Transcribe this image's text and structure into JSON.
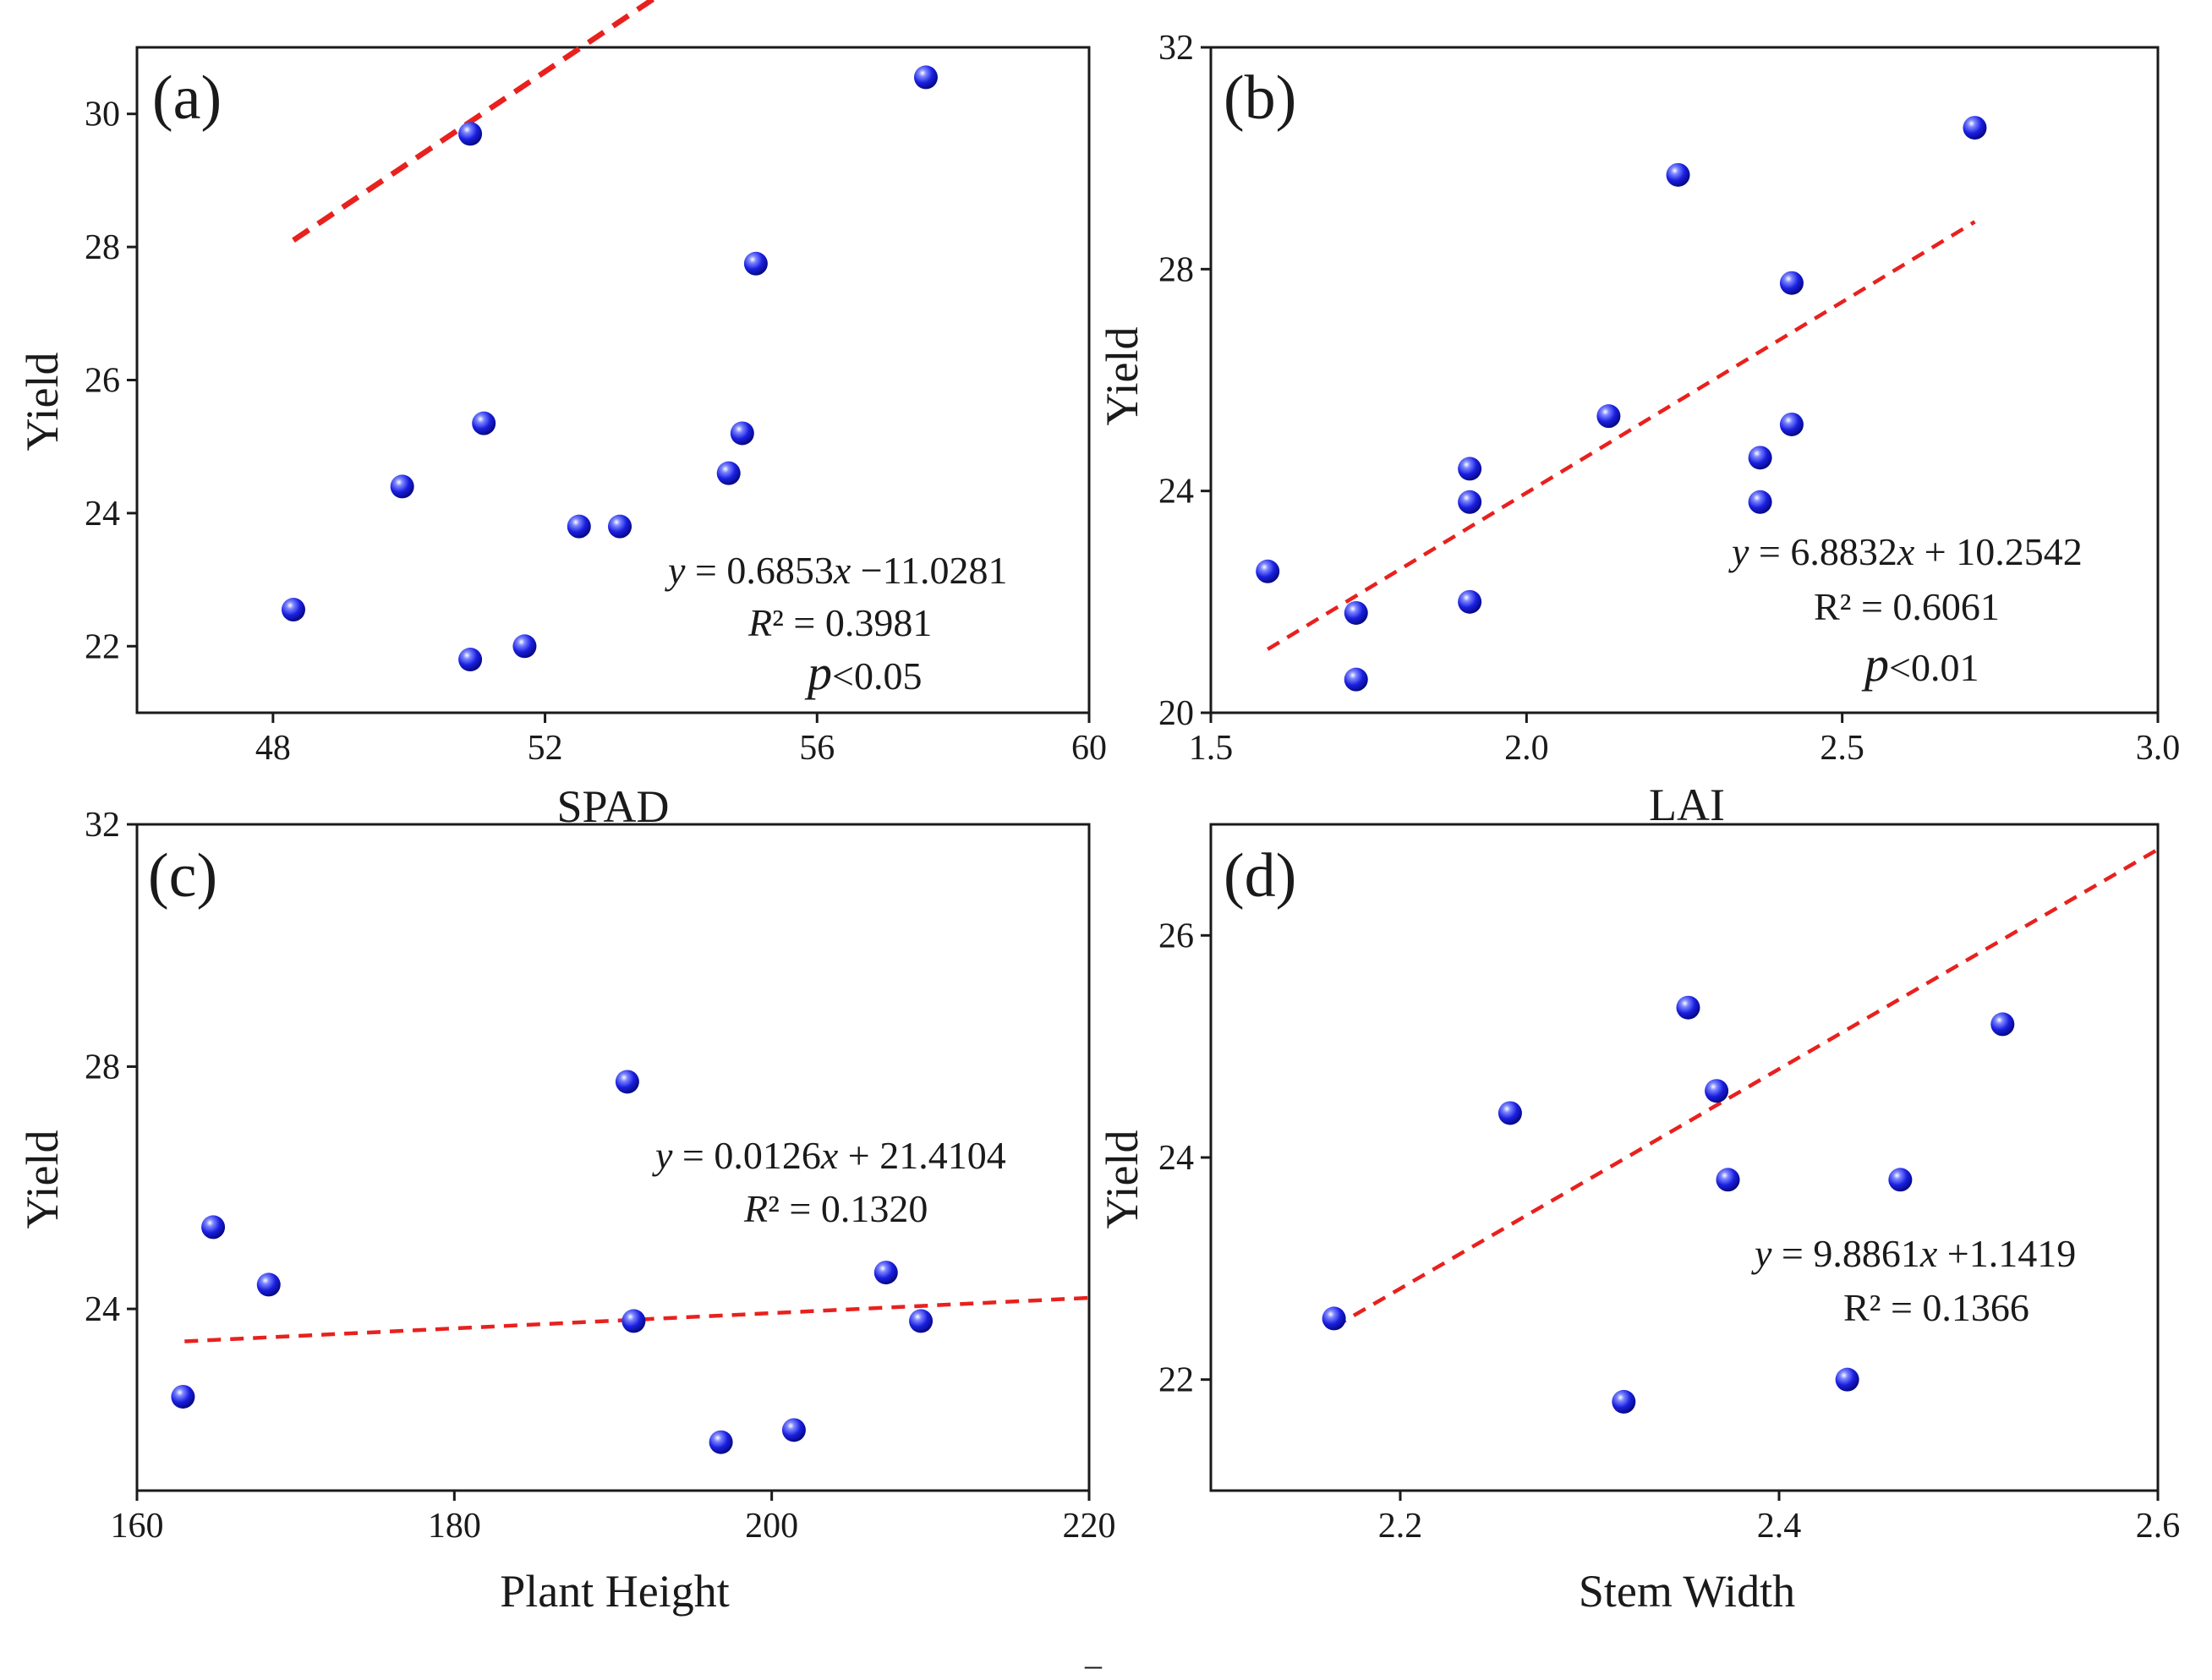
{
  "figure": {
    "footer_mark": "–"
  },
  "chart_data": [
    {
      "type": "scatter",
      "panel": "(a)",
      "xlabel": "SPAD",
      "ylabel": "Yield",
      "xlim": [
        46,
        60
      ],
      "ylim": [
        21,
        31
      ],
      "xticks": [
        48,
        52,
        56,
        60
      ],
      "yticks": [
        22,
        24,
        26,
        28,
        30
      ],
      "points": [
        {
          "x": 48.3,
          "y": 22.55
        },
        {
          "x": 49.9,
          "y": 24.4
        },
        {
          "x": 50.9,
          "y": 29.7
        },
        {
          "x": 50.9,
          "y": 21.8
        },
        {
          "x": 51.1,
          "y": 25.35
        },
        {
          "x": 51.7,
          "y": 22.0
        },
        {
          "x": 52.5,
          "y": 23.8
        },
        {
          "x": 53.1,
          "y": 23.8
        },
        {
          "x": 54.7,
          "y": 24.6
        },
        {
          "x": 54.9,
          "y": 25.2
        },
        {
          "x": 55.1,
          "y": 27.75
        },
        {
          "x": 57.6,
          "y": 30.55
        }
      ],
      "fit": {
        "slope": 0.6853,
        "intercept": -11.0281,
        "x_range": [
          48.3,
          57.6
        ],
        "display_intercept": -5.0
      },
      "annotations": {
        "equation_y": "y",
        "equation_rest": " = 0.6853",
        "equation_x": "x",
        "equation_const": " −11.0281",
        "r2_symbol": "R",
        "r2_rest": "² = 0.3981",
        "p_symbol": "p",
        "p_rest": "<0.05"
      }
    },
    {
      "type": "scatter",
      "panel": "(b)",
      "xlabel": "LAI",
      "ylabel": "Yield",
      "xlim": [
        1.5,
        3.0
      ],
      "ylim": [
        20,
        32
      ],
      "xticks": [
        1.5,
        2.0,
        2.5,
        3.0
      ],
      "xtick_labels": [
        "1.5",
        "2.0",
        "2.5",
        "3.0"
      ],
      "yticks": [
        20,
        24,
        28,
        32
      ],
      "points": [
        {
          "x": 1.59,
          "y": 22.55
        },
        {
          "x": 1.73,
          "y": 21.8
        },
        {
          "x": 1.73,
          "y": 20.6
        },
        {
          "x": 1.91,
          "y": 24.4
        },
        {
          "x": 1.91,
          "y": 23.8
        },
        {
          "x": 1.91,
          "y": 22.0
        },
        {
          "x": 2.13,
          "y": 25.35
        },
        {
          "x": 2.24,
          "y": 29.7
        },
        {
          "x": 2.37,
          "y": 24.6
        },
        {
          "x": 2.37,
          "y": 23.8
        },
        {
          "x": 2.42,
          "y": 27.75
        },
        {
          "x": 2.42,
          "y": 25.2
        },
        {
          "x": 2.71,
          "y": 30.55
        }
      ],
      "fit": {
        "slope": 6.8832,
        "intercept": 10.2542,
        "x_range": [
          1.59,
          2.71
        ],
        "display_intercept": 10.2
      },
      "annotations": {
        "equation_y": "y",
        "equation_rest": " = 6.8832",
        "equation_x": "x",
        "equation_const": " + 10.2542",
        "r2_text": "R² = 0.6061",
        "p_symbol": "p",
        "p_rest": "<0.01"
      }
    },
    {
      "type": "scatter",
      "panel": "(c)",
      "xlabel": "Plant Height",
      "ylabel": "Yield",
      "xlim": [
        160,
        220
      ],
      "ylim": [
        21,
        32
      ],
      "xticks": [
        160,
        180,
        200,
        220
      ],
      "yticks": [
        24,
        28,
        32
      ],
      "points": [
        {
          "x": 162.9,
          "y": 22.55
        },
        {
          "x": 164.8,
          "y": 25.35
        },
        {
          "x": 168.3,
          "y": 24.4
        },
        {
          "x": 190.9,
          "y": 27.75
        },
        {
          "x": 191.3,
          "y": 23.8
        },
        {
          "x": 196.8,
          "y": 21.8
        },
        {
          "x": 201.4,
          "y": 22.0
        },
        {
          "x": 207.2,
          "y": 24.6
        },
        {
          "x": 209.4,
          "y": 23.8
        }
      ],
      "fit": {
        "slope": 0.0126,
        "intercept": 21.4104,
        "x_range": [
          163,
          220
        ]
      },
      "annotations": {
        "equation_y": "y",
        "equation_rest": " = 0.0126",
        "equation_x": "x",
        "equation_const": " + 21.4104",
        "r2_symbol": "R",
        "r2_rest": "² = 0.1320"
      }
    },
    {
      "type": "scatter",
      "panel": "(d)",
      "xlabel": "Stem Width",
      "ylabel": "Yield",
      "xlim": [
        2.1,
        2.6
      ],
      "ylim": [
        21,
        27
      ],
      "xticks": [
        2.2,
        2.4,
        2.6
      ],
      "xtick_labels": [
        "2.2",
        "2.4",
        "2.6"
      ],
      "yticks": [
        22,
        24,
        26
      ],
      "points": [
        {
          "x": 2.165,
          "y": 22.55
        },
        {
          "x": 2.258,
          "y": 24.4
        },
        {
          "x": 2.318,
          "y": 21.8
        },
        {
          "x": 2.352,
          "y": 25.35
        },
        {
          "x": 2.367,
          "y": 24.6
        },
        {
          "x": 2.373,
          "y": 23.8
        },
        {
          "x": 2.436,
          "y": 22.0
        },
        {
          "x": 2.464,
          "y": 23.8
        },
        {
          "x": 2.518,
          "y": 25.2
        }
      ],
      "fit": {
        "slope": 9.8861,
        "intercept": 1.1419,
        "x_range": [
          2.165,
          2.6
        ],
        "display_intercept": 1.07
      },
      "annotations": {
        "equation_y": "y",
        "equation_rest": " = 9.8861",
        "equation_x": "x",
        "equation_const": " +1.1419",
        "r2_text": "R² = 0.1366"
      }
    }
  ]
}
